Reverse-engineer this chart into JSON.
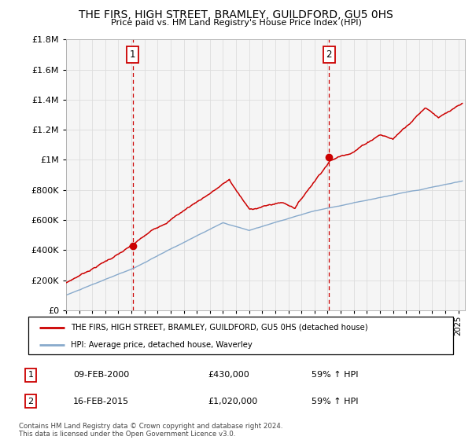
{
  "title": "THE FIRS, HIGH STREET, BRAMLEY, GUILDFORD, GU5 0HS",
  "subtitle": "Price paid vs. HM Land Registry's House Price Index (HPI)",
  "legend_line1": "THE FIRS, HIGH STREET, BRAMLEY, GUILDFORD, GU5 0HS (detached house)",
  "legend_line2": "HPI: Average price, detached house, Waverley",
  "transaction1_date": "09-FEB-2000",
  "transaction1_price": "£430,000",
  "transaction1_hpi": "59% ↑ HPI",
  "transaction2_date": "16-FEB-2015",
  "transaction2_price": "£1,020,000",
  "transaction2_hpi": "59% ↑ HPI",
  "footer": "Contains HM Land Registry data © Crown copyright and database right 2024.\nThis data is licensed under the Open Government Licence v3.0.",
  "vline1_x": 2000.1,
  "vline2_x": 2015.1,
  "dot1_x": 2000.1,
  "dot1_y": 430000,
  "dot2_x": 2015.1,
  "dot2_y": 1020000,
  "ylim": [
    0,
    1800000
  ],
  "xlim": [
    1995,
    2025.5
  ],
  "red_color": "#cc0000",
  "blue_color": "#88aacc",
  "grid_color": "#dddddd",
  "background_color": "#f5f5f5"
}
